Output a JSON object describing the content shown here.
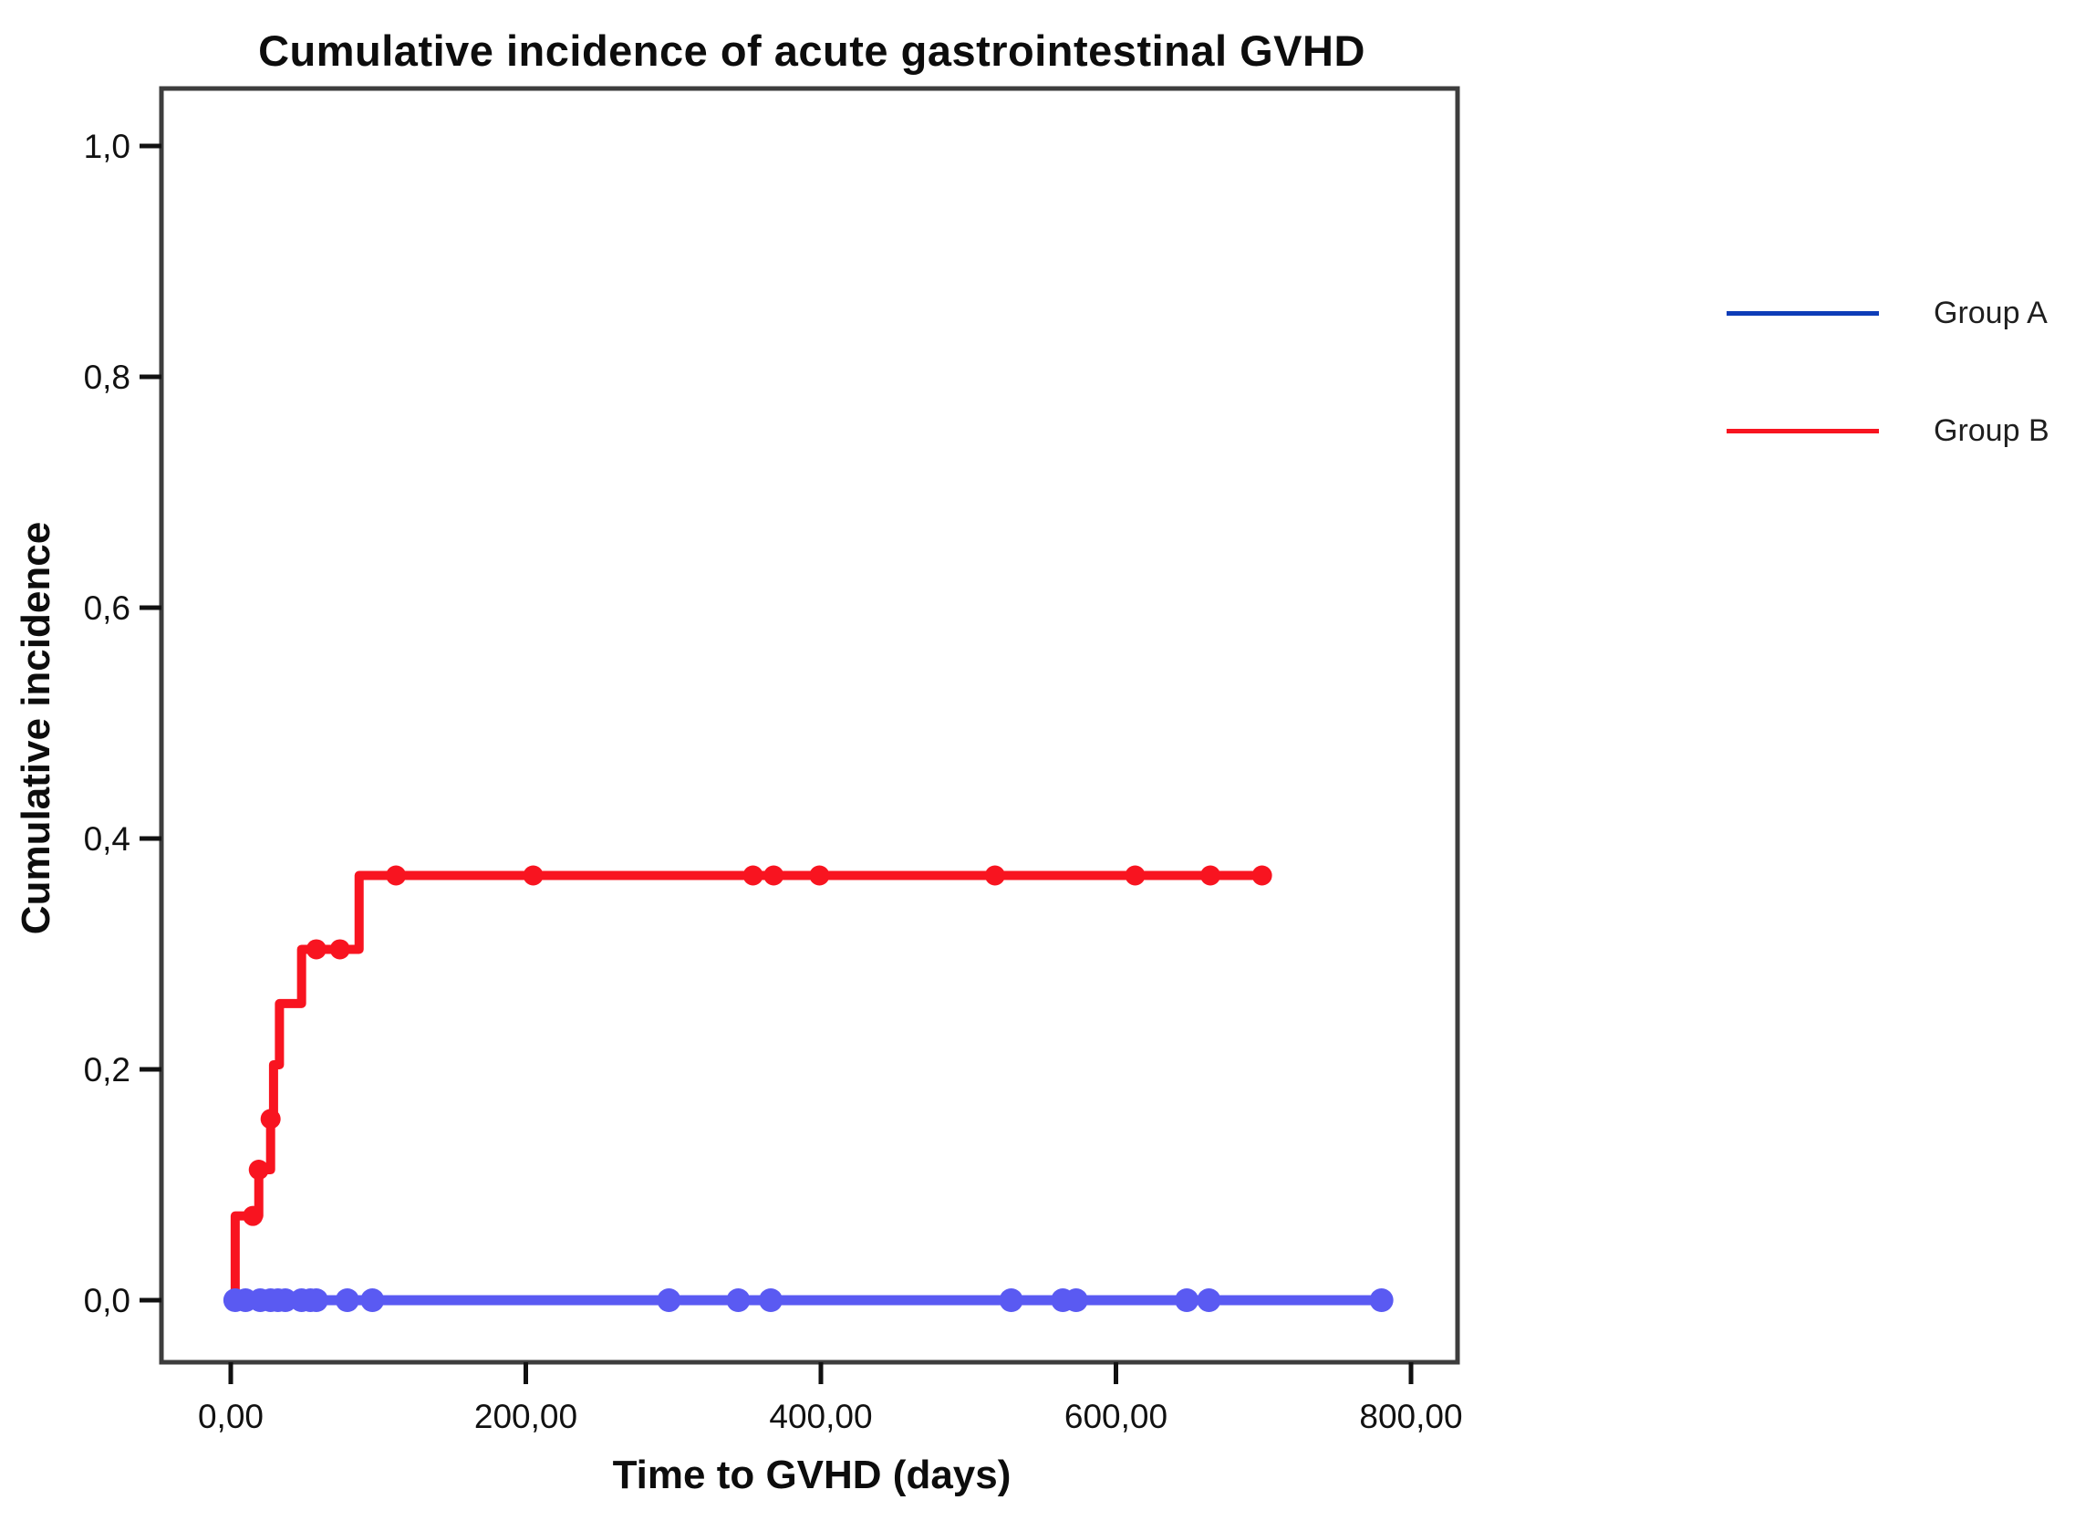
{
  "chart_data": {
    "type": "line",
    "subtype": "cumulative-incidence-step",
    "title": "Cumulative incidence of acute gastrointestinal GVHD",
    "xlabel": "Time to GVHD (days)",
    "ylabel": "Cumulative incidence",
    "grid": false,
    "legend_position": "right-outside",
    "x_axis": {
      "min": -45,
      "max": 830,
      "tick_values": [
        0,
        200,
        400,
        600,
        800
      ],
      "tick_labels": [
        "0,00",
        "200,00",
        "400,00",
        "600,00",
        "800,00"
      ]
    },
    "y_axis": {
      "min": -0.05,
      "max": 1.05,
      "tick_values": [
        0.0,
        0.2,
        0.4,
        0.6,
        0.8,
        1.0
      ],
      "tick_labels": [
        "0,0",
        "0,2",
        "0,4",
        "0,6",
        "0,8",
        "1,0"
      ]
    },
    "series": [
      {
        "name": "Group A",
        "color": "#5a5af2",
        "legend_color": "#0e3db8",
        "line_width": 11,
        "marker_radius": 13,
        "step_points": [
          [
            0,
            0.0
          ],
          [
            780,
            0.0
          ]
        ],
        "censor_markers": [
          [
            3,
            0
          ],
          [
            10,
            0
          ],
          [
            20,
            0
          ],
          [
            27,
            0
          ],
          [
            32,
            0
          ],
          [
            37,
            0
          ],
          [
            48,
            0
          ],
          [
            54,
            0
          ],
          [
            58,
            0
          ],
          [
            79,
            0
          ],
          [
            96,
            0
          ],
          [
            297,
            0
          ],
          [
            344,
            0
          ],
          [
            366,
            0
          ],
          [
            529,
            0
          ],
          [
            564,
            0
          ],
          [
            573,
            0
          ],
          [
            648,
            0
          ],
          [
            663,
            0
          ],
          [
            780,
            0
          ]
        ]
      },
      {
        "name": "Group B",
        "color": "#f81420",
        "legend_color": "#f81420",
        "line_width": 10,
        "marker_radius": 11,
        "step_points": [
          [
            0,
            0.0
          ],
          [
            3,
            0.073
          ],
          [
            19,
            0.113
          ],
          [
            27,
            0.157
          ],
          [
            29,
            0.204
          ],
          [
            33,
            0.257
          ],
          [
            48,
            0.304
          ],
          [
            87,
            0.368
          ],
          [
            699,
            0.368
          ]
        ],
        "censor_markers": [
          [
            15,
            0.073
          ],
          [
            19,
            0.113
          ],
          [
            27,
            0.157
          ],
          [
            58,
            0.304
          ],
          [
            74,
            0.304
          ],
          [
            112,
            0.368
          ],
          [
            205,
            0.368
          ],
          [
            354,
            0.368
          ],
          [
            368,
            0.368
          ],
          [
            399,
            0.368
          ],
          [
            518,
            0.368
          ],
          [
            613,
            0.368
          ],
          [
            664,
            0.368
          ],
          [
            699,
            0.368
          ]
        ]
      }
    ],
    "frame_color": "#3d3d3d"
  }
}
